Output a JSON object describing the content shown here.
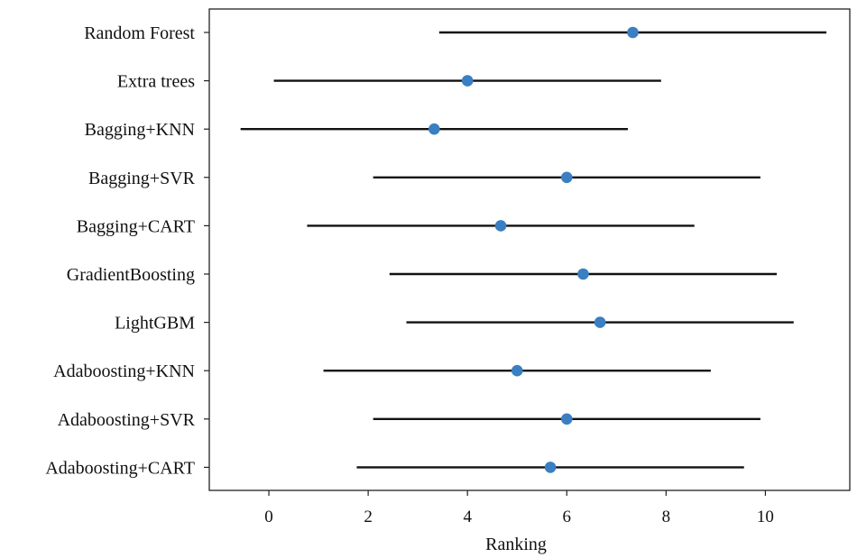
{
  "chart_data": {
    "type": "scatter",
    "subtype": "dot-interval",
    "title": "",
    "xlabel": "Ranking",
    "ylabel": "",
    "xlim": [
      -1.2,
      11.7
    ],
    "xticks": [
      0,
      2,
      4,
      6,
      8,
      10
    ],
    "grid": false,
    "legend": "none",
    "marker_color": "#3a7fc1",
    "line_color": "#111111",
    "categories": [
      "Random Forest",
      "Extra trees",
      "Bagging+KNN",
      "Bagging+SVR",
      "Bagging+CART",
      "GradientBoosting",
      "LightGBM",
      "Adaboosting+KNN",
      "Adaboosting+SVR",
      "Adaboosting+CART"
    ],
    "points": [
      {
        "label": "Random Forest",
        "mean": 7.33,
        "low": 3.43,
        "high": 11.23
      },
      {
        "label": "Extra trees",
        "mean": 4.0,
        "low": 0.1,
        "high": 7.9
      },
      {
        "label": "Bagging+KNN",
        "mean": 3.33,
        "low": -0.57,
        "high": 7.23
      },
      {
        "label": "Bagging+SVR",
        "mean": 6.0,
        "low": 2.1,
        "high": 9.9
      },
      {
        "label": "Bagging+CART",
        "mean": 4.67,
        "low": 0.77,
        "high": 8.57
      },
      {
        "label": "GradientBoosting",
        "mean": 6.33,
        "low": 2.43,
        "high": 10.23
      },
      {
        "label": "LightGBM",
        "mean": 6.67,
        "low": 2.77,
        "high": 10.57
      },
      {
        "label": "Adaboosting+KNN",
        "mean": 5.0,
        "low": 1.1,
        "high": 8.9
      },
      {
        "label": "Adaboosting+SVR",
        "mean": 6.0,
        "low": 2.1,
        "high": 9.9
      },
      {
        "label": "Adaboosting+CART",
        "mean": 5.67,
        "low": 1.77,
        "high": 9.57
      }
    ]
  }
}
